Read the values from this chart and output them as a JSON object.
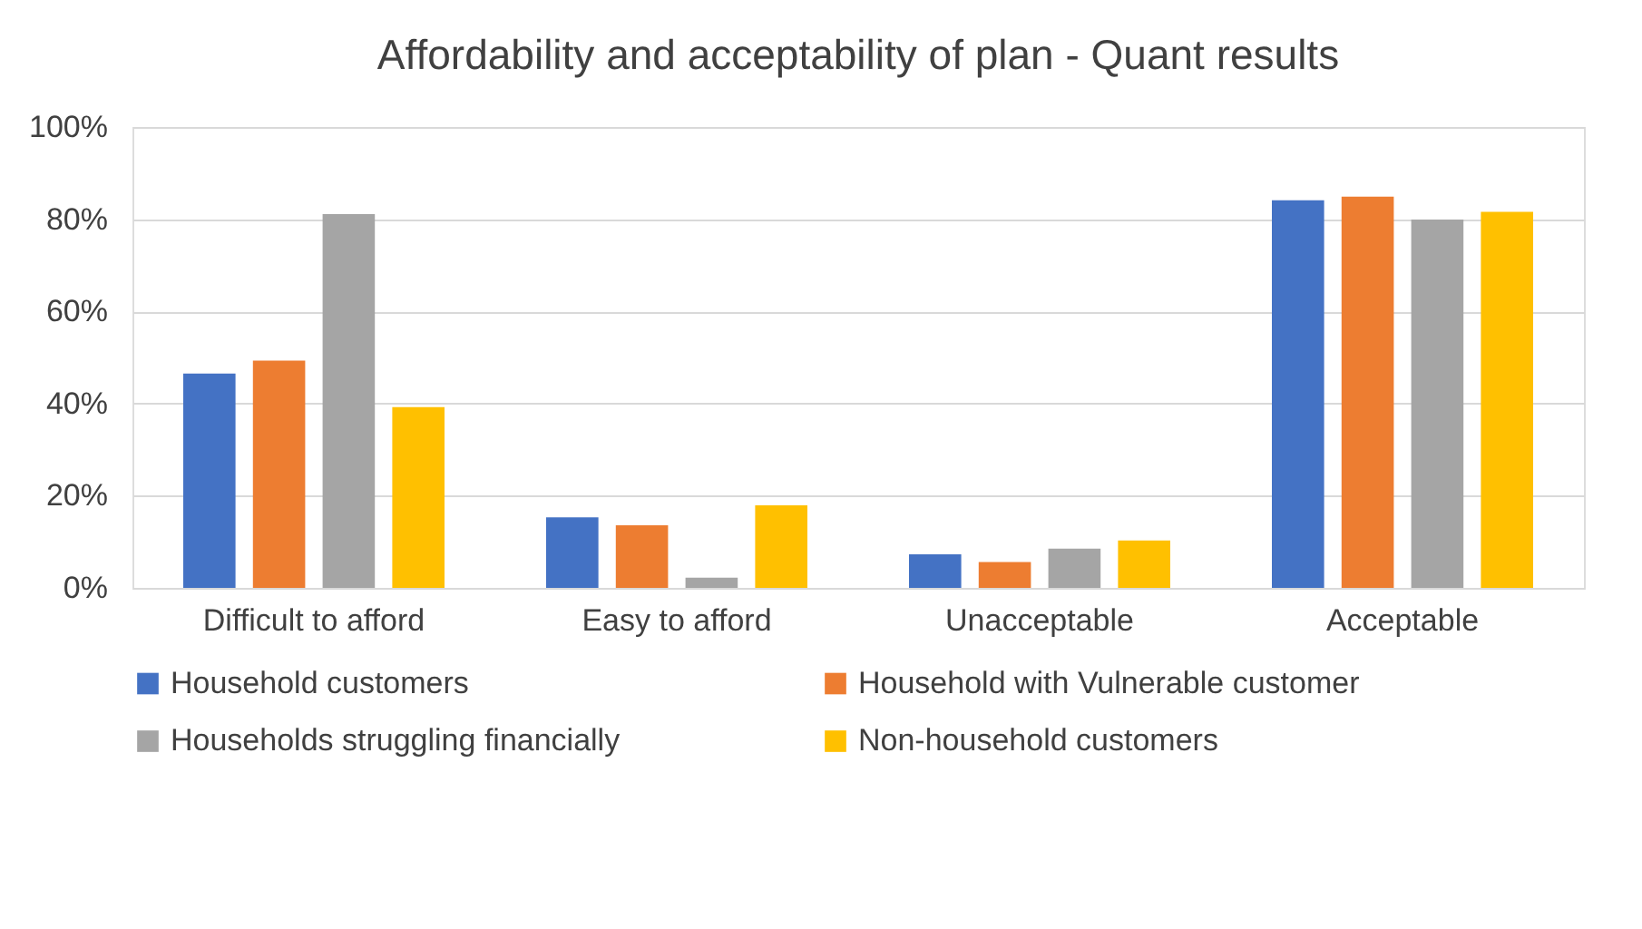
{
  "chart_data": {
    "type": "bar",
    "title": "Affordability and acceptability of plan - Quant results",
    "categories": [
      "Difficult to afford",
      "Easy to afford",
      "Unacceptable",
      "Acceptable"
    ],
    "series": [
      {
        "name": "Household customers",
        "color": "#4472c4",
        "values": [
          46.5,
          15.3,
          7.3,
          84.1
        ]
      },
      {
        "name": "Household with Vulnerable customer",
        "color": "#ed7d31",
        "values": [
          49.3,
          13.6,
          5.6,
          84.9
        ]
      },
      {
        "name": "Households struggling financially",
        "color": "#a5a5a5",
        "values": [
          81.1,
          2.2,
          8.5,
          79.9
        ]
      },
      {
        "name": "Non-household customers",
        "color": "#ffc000",
        "values": [
          39.2,
          17.9,
          10.3,
          81.6
        ]
      }
    ],
    "ylim": [
      0,
      100
    ],
    "yticks": [
      {
        "value": 0,
        "label": "0%"
      },
      {
        "value": 20,
        "label": "20%"
      },
      {
        "value": 40,
        "label": "40%"
      },
      {
        "value": 60,
        "label": "60%"
      },
      {
        "value": 80,
        "label": "80%"
      },
      {
        "value": 100,
        "label": "100%"
      }
    ],
    "grid": "y",
    "legend": "bottom"
  }
}
